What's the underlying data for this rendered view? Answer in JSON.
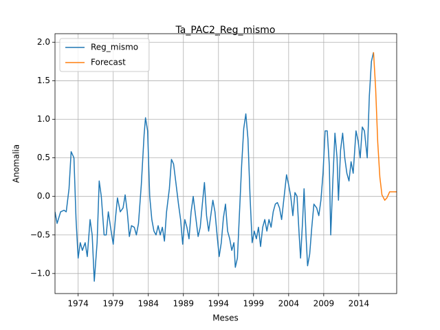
{
  "chart_data": {
    "type": "line",
    "title": "Ta_PAC2_Reg_mismo",
    "x_label": "Meses",
    "y_label": "Anomalia",
    "grid": true,
    "legend": "upper left",
    "xlim": [
      1970.7,
      2019.4
    ],
    "ylim": [
      -1.26,
      2.11
    ],
    "xticks": [
      1974,
      1979,
      1984,
      1989,
      1994,
      1999,
      2004,
      2009,
      2014
    ],
    "yticks": [
      {
        "value": -1.0,
        "label": "−1.0"
      },
      {
        "value": -0.5,
        "label": "−0.5"
      },
      {
        "value": 0.0,
        "label": "0.0"
      },
      {
        "value": 0.5,
        "label": "0.5"
      },
      {
        "value": 1.0,
        "label": "1.0"
      },
      {
        "value": 1.5,
        "label": "1.5"
      },
      {
        "value": 2.0,
        "label": "2.0"
      }
    ],
    "series": [
      {
        "name": "Reg_mismo",
        "color": "#1f77b4",
        "x": [
          1970.7,
          1971.0,
          1971.5,
          1972.0,
          1972.3,
          1972.7,
          1973.0,
          1973.4,
          1973.7,
          1974.0,
          1974.3,
          1974.6,
          1975.0,
          1975.3,
          1975.7,
          1976.0,
          1976.3,
          1976.7,
          1977.0,
          1977.3,
          1977.7,
          1978.0,
          1978.3,
          1978.7,
          1979.0,
          1979.3,
          1979.6,
          1980.0,
          1980.4,
          1980.7,
          1981.0,
          1981.3,
          1981.6,
          1982.0,
          1982.3,
          1982.6,
          1983.0,
          1983.4,
          1983.6,
          1983.9,
          1984.2,
          1984.5,
          1984.8,
          1985.1,
          1985.4,
          1985.7,
          1986.0,
          1986.3,
          1986.6,
          1987.0,
          1987.3,
          1987.6,
          1987.9,
          1988.3,
          1988.6,
          1988.9,
          1989.2,
          1989.5,
          1989.8,
          1990.1,
          1990.4,
          1990.8,
          1991.1,
          1991.4,
          1991.7,
          1992.0,
          1992.3,
          1992.6,
          1992.9,
          1993.2,
          1993.5,
          1993.8,
          1994.1,
          1994.4,
          1994.7,
          1995.0,
          1995.3,
          1995.6,
          1995.9,
          1996.2,
          1996.4,
          1996.7,
          1997.0,
          1997.3,
          1997.6,
          1997.9,
          1998.2,
          1998.5,
          1998.8,
          1999.1,
          1999.4,
          1999.7,
          2000.0,
          2000.3,
          2000.6,
          2000.9,
          2001.2,
          2001.5,
          2001.8,
          2002.1,
          2002.4,
          2002.7,
          2003.0,
          2003.3,
          2003.7,
          2004.0,
          2004.3,
          2004.6,
          2004.9,
          2005.2,
          2005.5,
          2005.7,
          2006.0,
          2006.2,
          2006.5,
          2006.7,
          2007.0,
          2007.3,
          2007.6,
          2008.0,
          2008.3,
          2008.6,
          2008.9,
          2009.2,
          2009.5,
          2009.8,
          2010.0,
          2010.3,
          2010.6,
          2010.9,
          2011.1,
          2011.4,
          2011.7,
          2012.0,
          2012.3,
          2012.6,
          2012.9,
          2013.2,
          2013.6,
          2013.9,
          2014.2,
          2014.5,
          2014.8,
          2015.2,
          2015.5,
          2015.8,
          2016.1
        ],
        "values": [
          -0.2,
          -0.35,
          -0.2,
          -0.18,
          -0.2,
          0.1,
          0.58,
          0.5,
          -0.3,
          -0.8,
          -0.6,
          -0.7,
          -0.6,
          -0.78,
          -0.3,
          -0.5,
          -1.1,
          -0.6,
          0.2,
          0.0,
          -0.5,
          -0.5,
          -0.2,
          -0.45,
          -0.62,
          -0.3,
          -0.02,
          -0.2,
          -0.15,
          0.02,
          -0.2,
          -0.52,
          -0.38,
          -0.4,
          -0.5,
          -0.35,
          0.15,
          0.8,
          1.02,
          0.85,
          0.0,
          -0.3,
          -0.45,
          -0.5,
          -0.38,
          -0.5,
          -0.4,
          -0.58,
          -0.2,
          0.1,
          0.48,
          0.42,
          0.2,
          -0.1,
          -0.3,
          -0.62,
          -0.3,
          -0.4,
          -0.55,
          -0.2,
          0.0,
          -0.3,
          -0.52,
          -0.4,
          -0.1,
          0.18,
          -0.25,
          -0.45,
          -0.25,
          -0.05,
          -0.2,
          -0.5,
          -0.78,
          -0.6,
          -0.28,
          -0.1,
          -0.45,
          -0.55,
          -0.7,
          -0.6,
          -0.92,
          -0.8,
          -0.2,
          0.4,
          0.88,
          1.07,
          0.75,
          0.0,
          -0.6,
          -0.45,
          -0.55,
          -0.4,
          -0.65,
          -0.4,
          -0.3,
          -0.45,
          -0.3,
          -0.4,
          -0.2,
          -0.1,
          -0.08,
          -0.15,
          -0.3,
          -0.05,
          0.28,
          0.15,
          0.0,
          -0.25,
          0.05,
          0.0,
          -0.5,
          -0.8,
          -0.3,
          0.1,
          -0.55,
          -0.9,
          -0.75,
          -0.4,
          -0.1,
          -0.15,
          -0.25,
          -0.05,
          0.3,
          0.85,
          0.85,
          0.4,
          -0.5,
          0.2,
          0.82,
          0.5,
          -0.05,
          0.6,
          0.82,
          0.5,
          0.3,
          0.2,
          0.45,
          0.3,
          0.85,
          0.72,
          0.5,
          0.9,
          0.85,
          0.5,
          1.3,
          1.75,
          1.87
        ]
      },
      {
        "name": "Forecast",
        "color": "#ff7f0e",
        "x": [
          2016.1,
          2016.4,
          2016.7,
          2017.0,
          2017.3,
          2017.7,
          2018.0,
          2018.4,
          2018.8,
          2019.4
        ],
        "values": [
          1.87,
          1.4,
          0.7,
          0.25,
          0.02,
          -0.05,
          -0.02,
          0.06,
          0.06,
          0.06
        ]
      }
    ]
  }
}
